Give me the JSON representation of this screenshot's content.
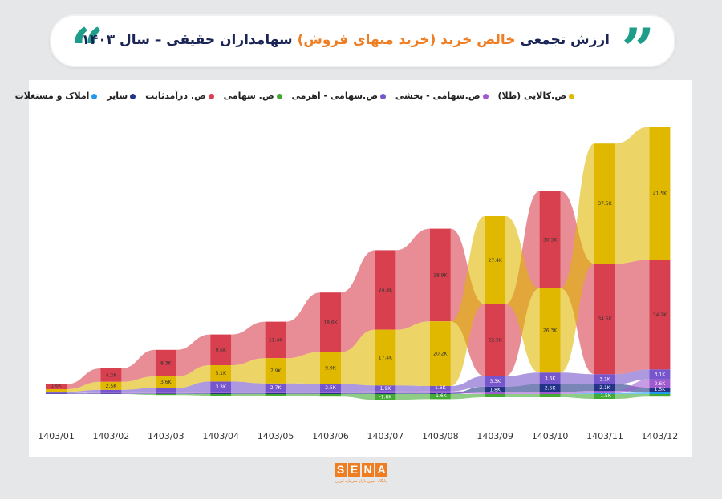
{
  "header": {
    "title_part1": "ارزش تجمعی",
    "title_highlight": "خالص خرید",
    "title_paren": "(خرید منهای فروش)",
    "title_part2": "سهامداران حقیقی – سال ۱۴۰۳",
    "quote_glyph_left": "“",
    "quote_glyph_right": "”"
  },
  "colors": {
    "commodity": "#e0b800",
    "income": "#d9404f",
    "sector": "#a05ad0",
    "leveraged": "#7755cc",
    "equity": "#44aa33",
    "other": "#223388",
    "realestate": "#2299ee",
    "accent": "#ef7d22",
    "quote": "#1f9d8b"
  },
  "chart_data": {
    "type": "stacked-area",
    "title": "ارزش تجمعی خالص خرید (خرید منهای فروش) سهامداران حقیقی – سال ۱۴۰۳",
    "x": [
      "1403/01",
      "1403/02",
      "1403/03",
      "1403/04",
      "1403/05",
      "1403/06",
      "1403/07",
      "1403/08",
      "1403/09",
      "1403/10",
      "1403/11",
      "1403/12"
    ],
    "unit": "K",
    "ylim": [
      -3,
      85
    ],
    "legend": [
      {
        "key": "commodity",
        "label": "ص.کالایی (طلا)"
      },
      {
        "key": "sector",
        "label": "ص.سهامی - بخشی"
      },
      {
        "key": "leveraged",
        "label": "ص.سهامی - اهرمی"
      },
      {
        "key": "equity",
        "label": "ص. سهامی"
      },
      {
        "key": "income",
        "label": "ص. درآمدثابت"
      },
      {
        "key": "other",
        "label": "سایر"
      },
      {
        "key": "realestate",
        "label": "املاک و مستغلات"
      }
    ],
    "series": [
      {
        "key": "equity",
        "name": "ص. سهامی",
        "values": [
          0,
          0,
          -0.3,
          -0.5,
          -0.6,
          -0.8,
          -1.8,
          -1.6,
          -1.0,
          -1.0,
          -1.5,
          -0.8
        ],
        "labels": [
          "",
          "",
          "",
          "",
          "",
          "",
          "-1.8K",
          "-1.6K",
          "",
          "",
          "-1.5K",
          ""
        ]
      },
      {
        "key": "realestate",
        "name": "املاک و مستغلات",
        "values": [
          0,
          0,
          0,
          0,
          0,
          0,
          0,
          0,
          0,
          0,
          0.3,
          0.5
        ],
        "labels": [
          "",
          "",
          "",
          "",
          "",
          "",
          "",
          "",
          "",
          "",
          "",
          ""
        ]
      },
      {
        "key": "other",
        "name": "سایر",
        "values": [
          0.2,
          0.2,
          0.2,
          0.3,
          0.3,
          0.3,
          0.3,
          0.3,
          1.8,
          2.5,
          2.1,
          1.5
        ],
        "labels": [
          "",
          "",
          "",
          "",
          "",
          "",
          "",
          "",
          "1.8K",
          "2.5K",
          "2.1K",
          "1.5K"
        ]
      },
      {
        "key": "sector",
        "name": "ص.سهامی - بخشی",
        "values": [
          0.1,
          0.2,
          0.2,
          0.3,
          0.3,
          0.4,
          0.5,
          0.6,
          0.5,
          0.6,
          0.7,
          2.6
        ],
        "labels": [
          "",
          "",
          "",
          "",
          "",
          "",
          "",
          "",
          "",
          "",
          "",
          "2.6K"
        ]
      },
      {
        "key": "leveraged",
        "name": "ص.سهامی - اهرمی",
        "values": [
          0.4,
          0.9,
          1.5,
          3.3,
          2.7,
          2.5,
          1.9,
          1.6,
          3.3,
          3.6,
          3.1,
          3.1
        ],
        "labels": [
          "",
          "",
          "",
          "3.3K",
          "2.7K",
          "2.5K",
          "1.9K",
          "1.6K",
          "3.3K",
          "3.6K",
          "3.1K",
          "3.1K"
        ]
      },
      {
        "key": "income",
        "name": "ص. درآمدثابت",
        "values": [
          1.6,
          4.2,
          8.3,
          9.6,
          11.4,
          18.6,
          24.8,
          28.9,
          22.5,
          30.3,
          34.5,
          34.2
        ],
        "labels": [
          "1.6K",
          "4.2K",
          "8.3K",
          "9.6K",
          "11.4K",
          "18.6K",
          "24.8K",
          "28.9K",
          "22.5K",
          "30.3K",
          "34.5K",
          "34.2K"
        ]
      },
      {
        "key": "commodity",
        "name": "ص.کالایی (طلا)",
        "values": [
          0.8,
          2.5,
          3.6,
          5.1,
          7.9,
          9.9,
          17.4,
          20.2,
          27.4,
          26.3,
          37.5,
          41.5
        ],
        "labels": [
          "",
          "2.5K",
          "3.6K",
          "5.1K",
          "7.9K",
          "9.9K",
          "17.4K",
          "20.2K",
          "27.4K",
          "26.3K",
          "37.5K",
          "41.5K"
        ]
      }
    ],
    "rank_order_note": "stacking order per month follows value size: larger series sit on top"
  },
  "footer": {
    "logo_letters": [
      "S",
      "E",
      "N",
      "A"
    ],
    "tagline": "پایگاه خبری بازار سرمایه ایران"
  }
}
